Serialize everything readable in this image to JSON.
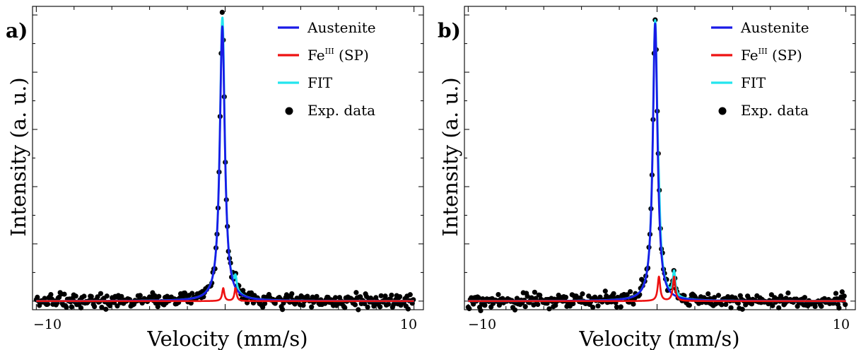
{
  "chart_data": [
    {
      "type": "line",
      "panel_label": "a)",
      "xlabel": "Velocity (mm/s)",
      "ylabel": "Intensity (a. u.)",
      "x_tick_labels": [
        "−10",
        "10"
      ],
      "xlim": [
        -10.2,
        10.5
      ],
      "ylim": [
        -0.03,
        1.03
      ],
      "grid": false,
      "legend_position": "top-right",
      "legend": [
        {
          "label": "Austenite",
          "series": "austenite"
        },
        {
          "label": "Fe",
          "sup": "III",
          "suffix": " (SP)",
          "series": "feiii"
        },
        {
          "label": "FIT",
          "series": "fit"
        },
        {
          "label": "Exp. data",
          "series": "exp"
        }
      ],
      "colors": {
        "austenite": "#1a1ae6",
        "feiii": "#ee1111",
        "fit": "#22e5ee",
        "exp": "#000000"
      },
      "series": {
        "austenite": {
          "center": -0.15,
          "width": 0.32,
          "amplitude": 0.96
        },
        "feiii": {
          "centers": [
            -0.1,
            0.55
          ],
          "widths": [
            0.14,
            0.14
          ],
          "amplitudes": [
            0.045,
            0.045
          ]
        },
        "fit": {
          "baseline": 0.0
        },
        "exp": {
          "noise": 0.012,
          "step": 0.055
        }
      }
    },
    {
      "type": "line",
      "panel_label": "b)",
      "xlabel": "Velocity (mm/s)",
      "ylabel": "Intensity (a. u.)",
      "x_tick_labels": [
        "−10",
        "10"
      ],
      "xlim": [
        -10.2,
        10.5
      ],
      "ylim": [
        -0.03,
        1.03
      ],
      "grid": false,
      "legend_position": "top-right",
      "legend": [
        {
          "label": "Austenite",
          "series": "austenite"
        },
        {
          "label": "Fe",
          "sup": "III",
          "suffix": " (SP)",
          "series": "feiii"
        },
        {
          "label": "FIT",
          "series": "fit"
        },
        {
          "label": "Exp. data",
          "series": "exp"
        }
      ],
      "colors": {
        "austenite": "#1a1ae6",
        "feiii": "#ee1111",
        "fit": "#22e5ee",
        "exp": "#000000"
      },
      "series": {
        "austenite": {
          "center": -0.1,
          "width": 0.3,
          "amplitude": 0.97
        },
        "feiii": {
          "centers": [
            0.1,
            0.9
          ],
          "widths": [
            0.16,
            0.16
          ],
          "amplitudes": [
            0.085,
            0.085
          ]
        },
        "fit": {
          "baseline": 0.0
        },
        "exp": {
          "noise": 0.012,
          "step": 0.055
        }
      }
    }
  ]
}
